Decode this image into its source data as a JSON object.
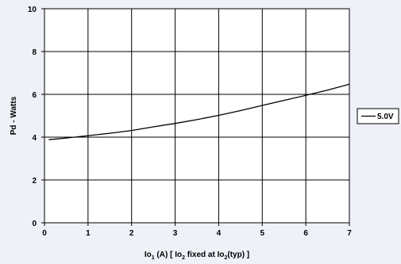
{
  "chart_data": {
    "type": "line",
    "title": "",
    "xlabel_parts": [
      "Io",
      "1",
      " (A) [ Io",
      "2",
      " fixed at Io",
      "2",
      "(typ) ]"
    ],
    "ylabel": "Pd - Watts",
    "xlim": [
      0,
      7
    ],
    "ylim": [
      0,
      10
    ],
    "x_ticks": [
      "0",
      "1",
      "2",
      "3",
      "4",
      "5",
      "6",
      "7"
    ],
    "y_ticks": [
      "0",
      "2",
      "4",
      "6",
      "8",
      "10"
    ],
    "grid": true,
    "legend_position": "right",
    "series": [
      {
        "name": "5.0V",
        "color": "#000000",
        "x": [
          0.1,
          0.5,
          1.0,
          1.5,
          2.0,
          2.5,
          3.0,
          3.5,
          4.0,
          4.5,
          5.0,
          5.5,
          6.0,
          6.5,
          7.0
        ],
        "y": [
          3.88,
          3.96,
          4.07,
          4.18,
          4.31,
          4.48,
          4.64,
          4.82,
          5.02,
          5.24,
          5.48,
          5.72,
          5.95,
          6.2,
          6.47
        ]
      }
    ]
  },
  "colors": {
    "background": "#eef1f7",
    "plot_area": "#ffffff",
    "grid": "#000000"
  }
}
